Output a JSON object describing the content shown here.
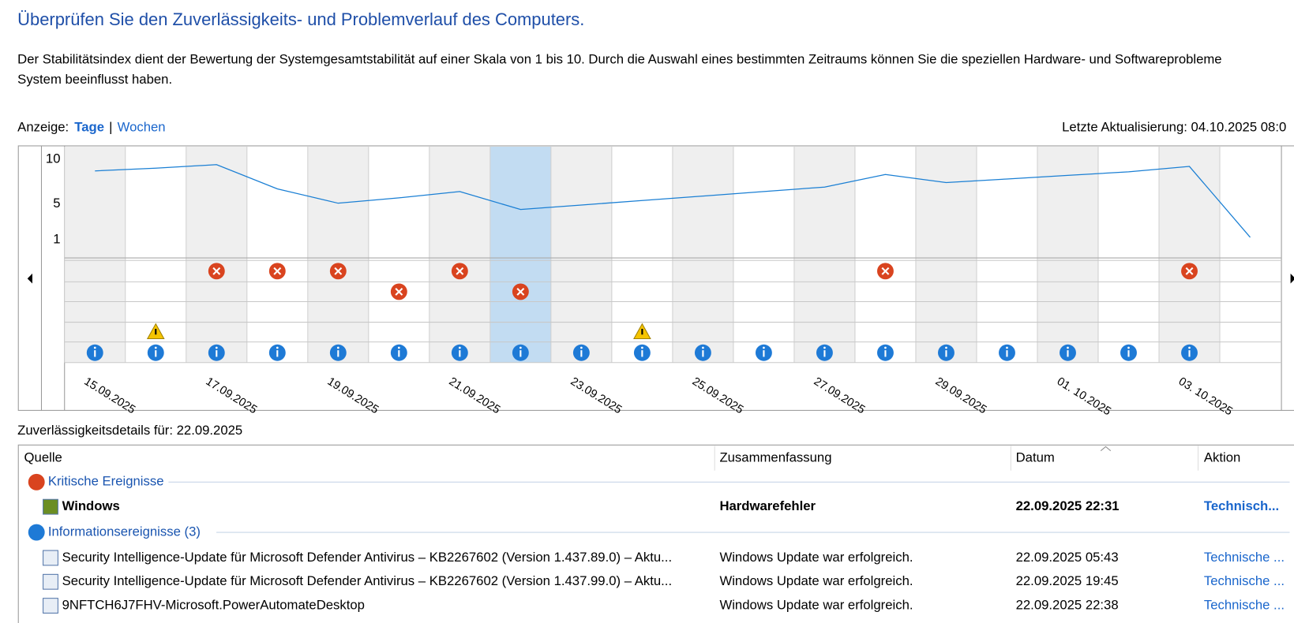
{
  "header": {
    "title": "Überprüfen Sie den Zuverlässigkeits- und Problemverlauf des Computers.",
    "description": [
      "Der Stabilitätsindex dient der Bewertung der Systemgesamtstabilität auf einer Skala von 1 bis 10. Durch die Auswahl eines bestimmten Zeitraums können Sie die speziellen Hardware- und Softwareprobleme",
      "System beeinflusst haben."
    ]
  },
  "view": {
    "label": "Anzeige:",
    "options": [
      "Tage",
      "Wochen"
    ],
    "separator": "|"
  },
  "last_update": "Letzte Aktualisierung: 04.10.2025 08:0",
  "chart_data": {
    "type": "line",
    "color": "#1a7fd4",
    "categories": [
      "15.09.2025",
      null,
      "17.09.2025",
      null,
      "19.09.2025",
      null,
      "21.09.2025",
      null,
      "23.09.2025",
      null,
      "25.09.2025",
      null,
      "27.09.2025",
      null,
      "29.09.2025",
      null,
      "01. 10.2025",
      null,
      "03. 10.2025",
      null
    ],
    "values": [
      8.7,
      9.0,
      9.4,
      6.7,
      5.1,
      5.7,
      6.4,
      4.4,
      4.9,
      5.4,
      5.9,
      6.4,
      6.9,
      8.3,
      7.4,
      7.8,
      8.2,
      8.6,
      9.2,
      1.3
    ],
    "ylim": [
      -1,
      11.4
    ],
    "yticks": [
      1,
      5,
      10
    ],
    "selected_category": 7,
    "events": [
      [
        0,
        0,
        1,
        1,
        1,
        0,
        1,
        0,
        0,
        0,
        0,
        0,
        0,
        1,
        0,
        0,
        0,
        0,
        1,
        0
      ],
      [
        0,
        0,
        0,
        0,
        0,
        1,
        0,
        1,
        0,
        0,
        0,
        0,
        0,
        0,
        0,
        0,
        0,
        0,
        0,
        0
      ],
      [
        0,
        0,
        0,
        0,
        0,
        0,
        0,
        0,
        0,
        0,
        0,
        0,
        0,
        0,
        0,
        0,
        0,
        0,
        0,
        0
      ],
      [
        0,
        1,
        0,
        0,
        0,
        0,
        0,
        0,
        0,
        1,
        0,
        0,
        0,
        0,
        0,
        0,
        0,
        0,
        0,
        0
      ],
      [
        1,
        1,
        1,
        1,
        1,
        1,
        1,
        1,
        1,
        1,
        1,
        1,
        1,
        1,
        1,
        1,
        1,
        1,
        1,
        0
      ]
    ],
    "event_kinds": [
      "critical",
      "critical",
      "critical",
      "warning",
      "information"
    ]
  },
  "details": {
    "title": "Zuverlässigkeitsdetails für: 22.09.2025",
    "columns": [
      "Quelle",
      "Zusammenfassung",
      "Datum",
      "Aktion"
    ],
    "groups": [
      {
        "label": "Kritische Ereignisse",
        "rows": [
          [
            "Windows",
            "Hardwarefehler",
            "22.09.2025 22:31",
            "Technisch..."
          ]
        ]
      },
      {
        "label": "Informationsereignisse (3)",
        "rows": [
          [
            "Security Intelligence-Update für Microsoft Defender Antivirus – KB2267602 (Version 1.437.89.0) – Aktu...",
            "Windows Update war erfolgreich.",
            "22.09.2025 05:43",
            "Technische ..."
          ],
          [
            "Security Intelligence-Update für Microsoft Defender Antivirus – KB2267602 (Version 1.437.99.0) – Aktu...",
            "Windows Update war erfolgreich.",
            "22.09.2025 19:45",
            "Technische ..."
          ],
          [
            "9NFTCH6J7FHV-Microsoft.PowerAutomateDesktop",
            "Windows Update war erfolgreich.",
            "22.09.2025 22:38",
            "Technische ..."
          ]
        ]
      }
    ]
  }
}
